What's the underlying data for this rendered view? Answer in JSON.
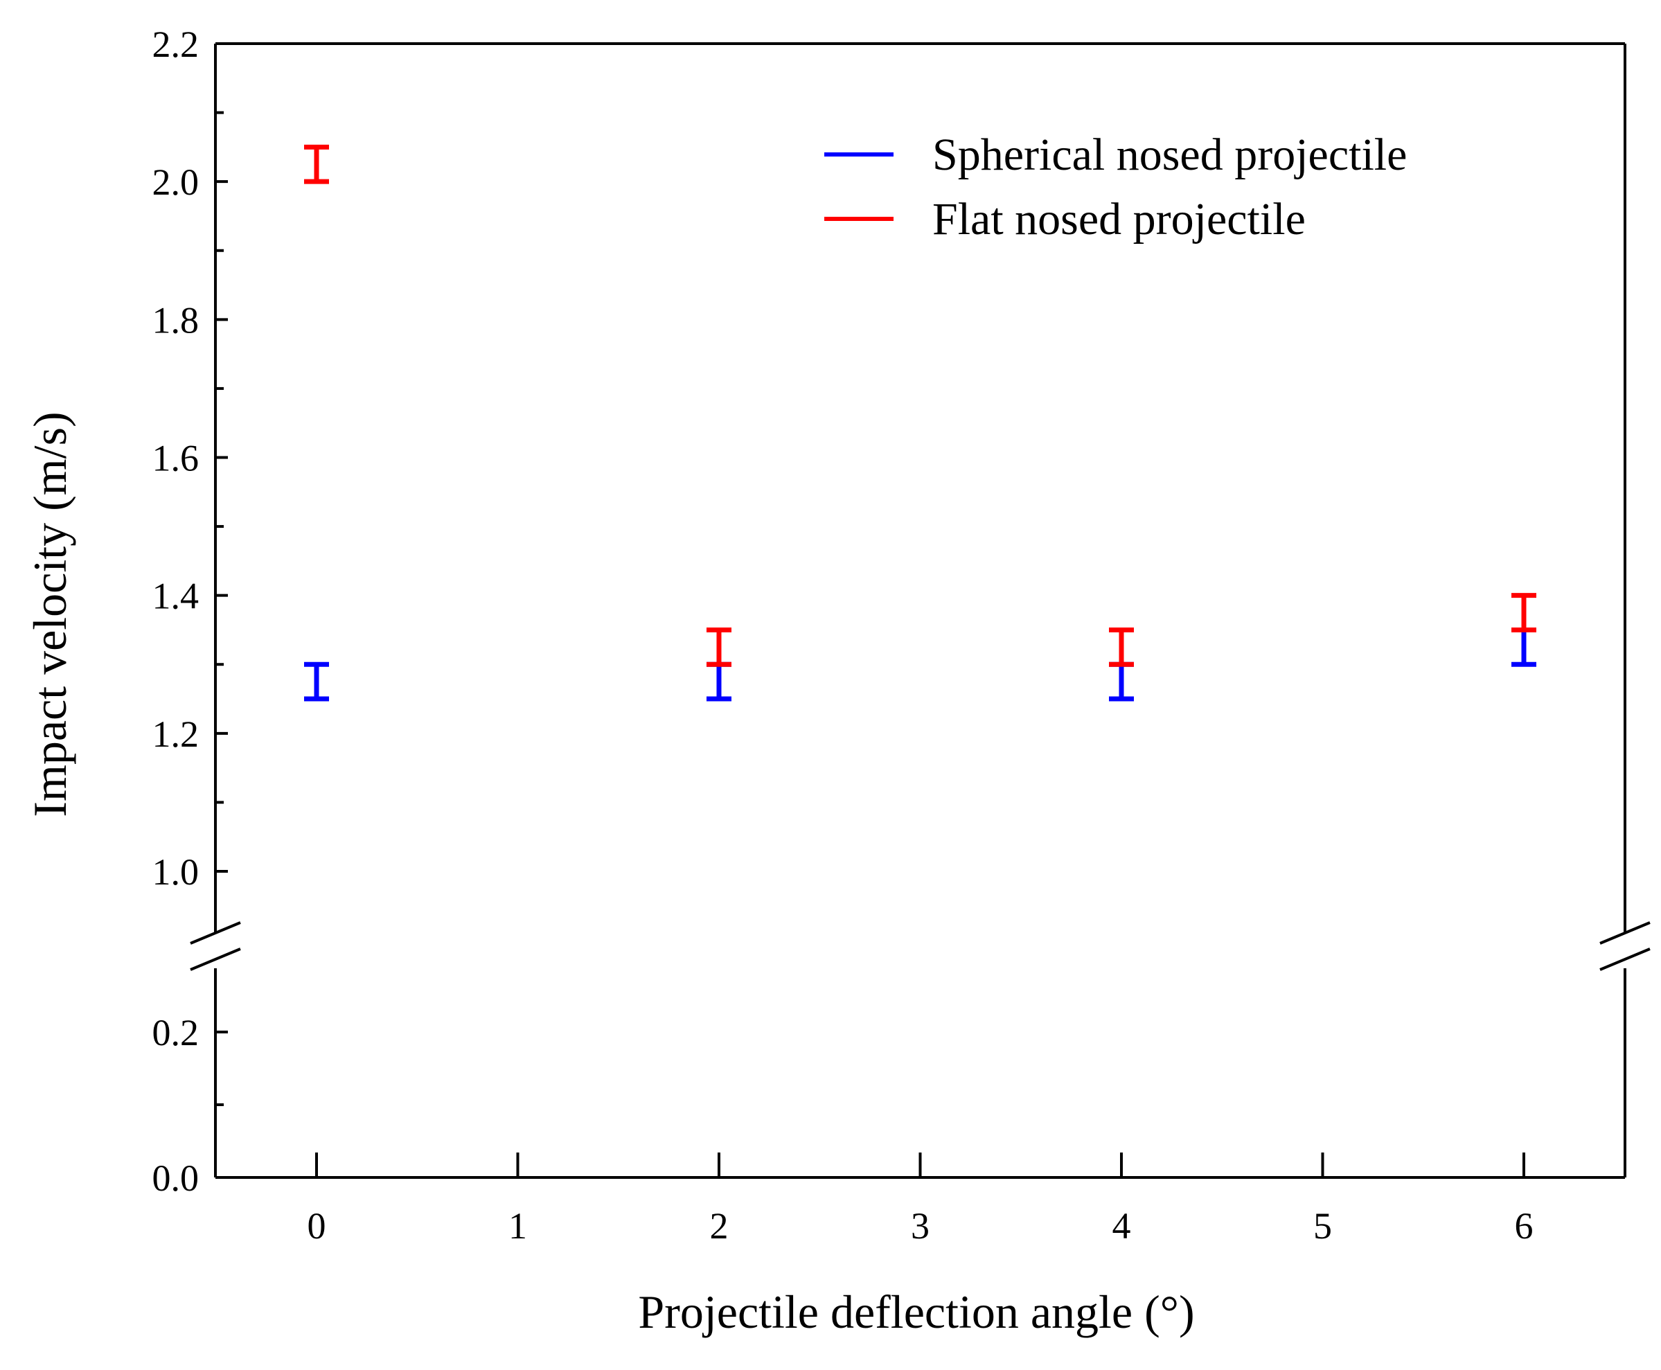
{
  "chart_data": {
    "type": "errorbar",
    "title": "",
    "xlabel": "Projectile deflection angle (°)",
    "ylabel": "Impact velocity (m/s)",
    "xlim": [
      -0.5,
      6.5
    ],
    "x_ticks": [
      0,
      1,
      2,
      3,
      4,
      5,
      6
    ],
    "x_tick_labels": [
      "0",
      "1",
      "2",
      "3",
      "4",
      "5",
      "6"
    ],
    "y_axis_break": {
      "from": 0.3,
      "to": 0.9
    },
    "y_segments": [
      {
        "range": [
          0.0,
          0.3
        ],
        "ticks": [
          0.0,
          0.2
        ],
        "tick_labels": [
          "0.0",
          "0.2"
        ],
        "minor_ticks": [
          0.1
        ]
      },
      {
        "range": [
          0.9,
          2.2
        ],
        "ticks": [
          1.0,
          1.2,
          1.4,
          1.6,
          1.8,
          2.0,
          2.2
        ],
        "tick_labels": [
          "1.0",
          "1.2",
          "1.4",
          "1.6",
          "1.8",
          "2.0",
          "2.2"
        ],
        "minor_ticks": [
          1.1,
          1.3,
          1.5,
          1.7,
          1.9,
          2.1
        ]
      }
    ],
    "legend_position": "top-right",
    "series": [
      {
        "name": "Spherical nosed projectile",
        "color": "#0000ff",
        "points": [
          {
            "x": 0,
            "low": 1.25,
            "high": 1.3
          },
          {
            "x": 2,
            "low": 1.25,
            "high": 1.3
          },
          {
            "x": 4,
            "low": 1.25,
            "high": 1.3
          },
          {
            "x": 6,
            "low": 1.3,
            "high": 1.35
          }
        ]
      },
      {
        "name": "Flat nosed projectile",
        "color": "#ff0000",
        "points": [
          {
            "x": 0,
            "low": 2.0,
            "high": 2.05
          },
          {
            "x": 2,
            "low": 1.3,
            "high": 1.35
          },
          {
            "x": 4,
            "low": 1.3,
            "high": 1.35
          },
          {
            "x": 6,
            "low": 1.35,
            "high": 1.4
          }
        ]
      }
    ]
  }
}
